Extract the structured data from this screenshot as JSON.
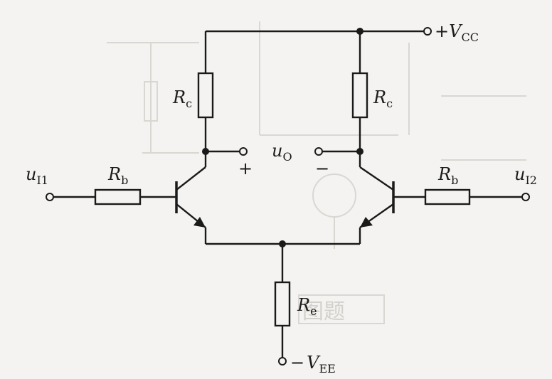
{
  "labels": {
    "vcc_main": "V",
    "vcc_sign": "+",
    "vcc_sub": "CC",
    "vee_main": "V",
    "vee_sign": "−",
    "vee_sub": "EE",
    "rc_left_main": "R",
    "rc_left_sub": "c",
    "rc_right_main": "R",
    "rc_right_sub": "c",
    "rb_left_main": "R",
    "rb_left_sub": "b",
    "rb_right_main": "R",
    "rb_right_sub": "b",
    "re_main": "R",
    "re_sub": "e",
    "ui1_main": "u",
    "ui1_sub": "I1",
    "ui2_main": "u",
    "ui2_sub": "I2",
    "uo_main": "u",
    "uo_sub": "O",
    "plus": "+",
    "minus": "−"
  },
  "colors": {
    "wire": "#1a1a1a",
    "background": "#f4f3f1",
    "bleed_through": "#d9d7d2"
  }
}
